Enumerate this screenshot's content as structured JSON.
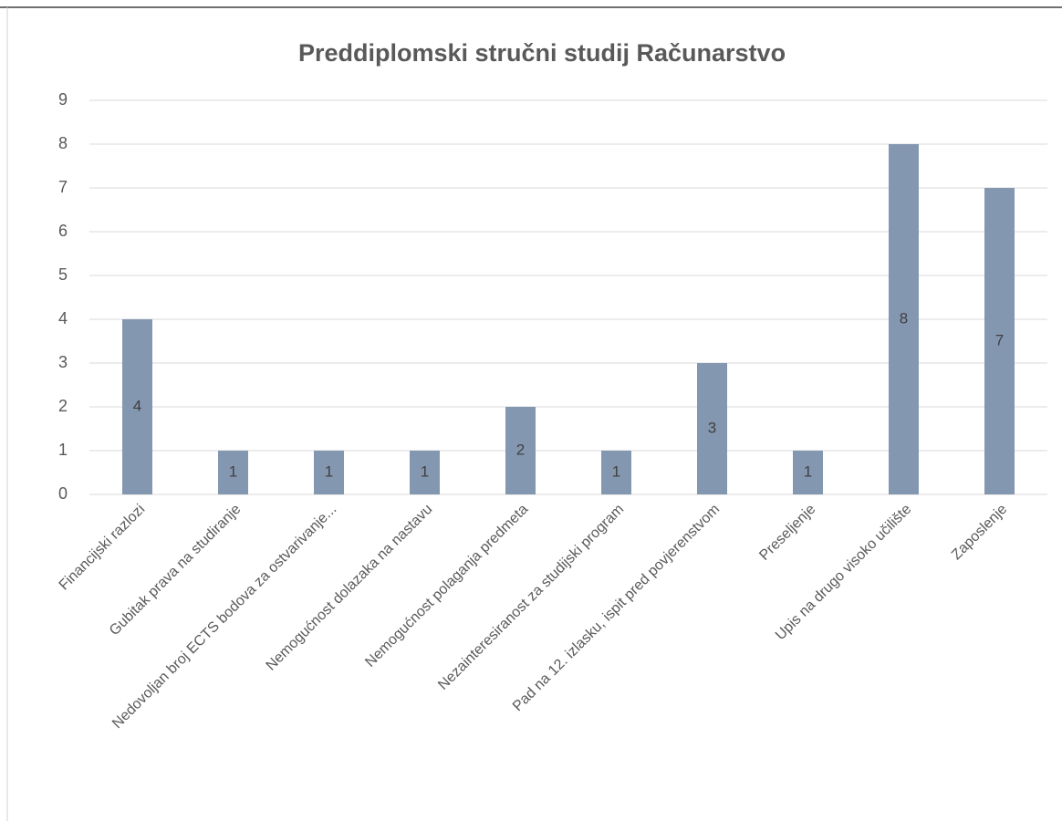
{
  "chart_data": {
    "type": "bar",
    "title": "Preddiplomski stručni studij Računarstvo",
    "categories": [
      "Financijski razlozi",
      "Gubitak prava na studiranje",
      "Nedovoljan broj ECTS bodova za ostvarivanje...",
      "Nemogućnost dolazaka na nastavu",
      "Nemogućnost polaganja predmeta",
      "Nezainteresiranost za studijski program",
      "Pad na 12. izlasku, ispit pred povjerenstvom",
      "Preseljenje",
      "Upis na drugo visoko učilište",
      "Zaposlenje"
    ],
    "values": [
      4,
      1,
      1,
      1,
      2,
      1,
      3,
      1,
      8,
      7
    ],
    "color": "#8497b0",
    "ylim": [
      0,
      9
    ],
    "yticks": [
      0,
      1,
      2,
      3,
      4,
      5,
      6,
      7,
      8,
      9
    ],
    "grid": true,
    "data_labels": true
  }
}
